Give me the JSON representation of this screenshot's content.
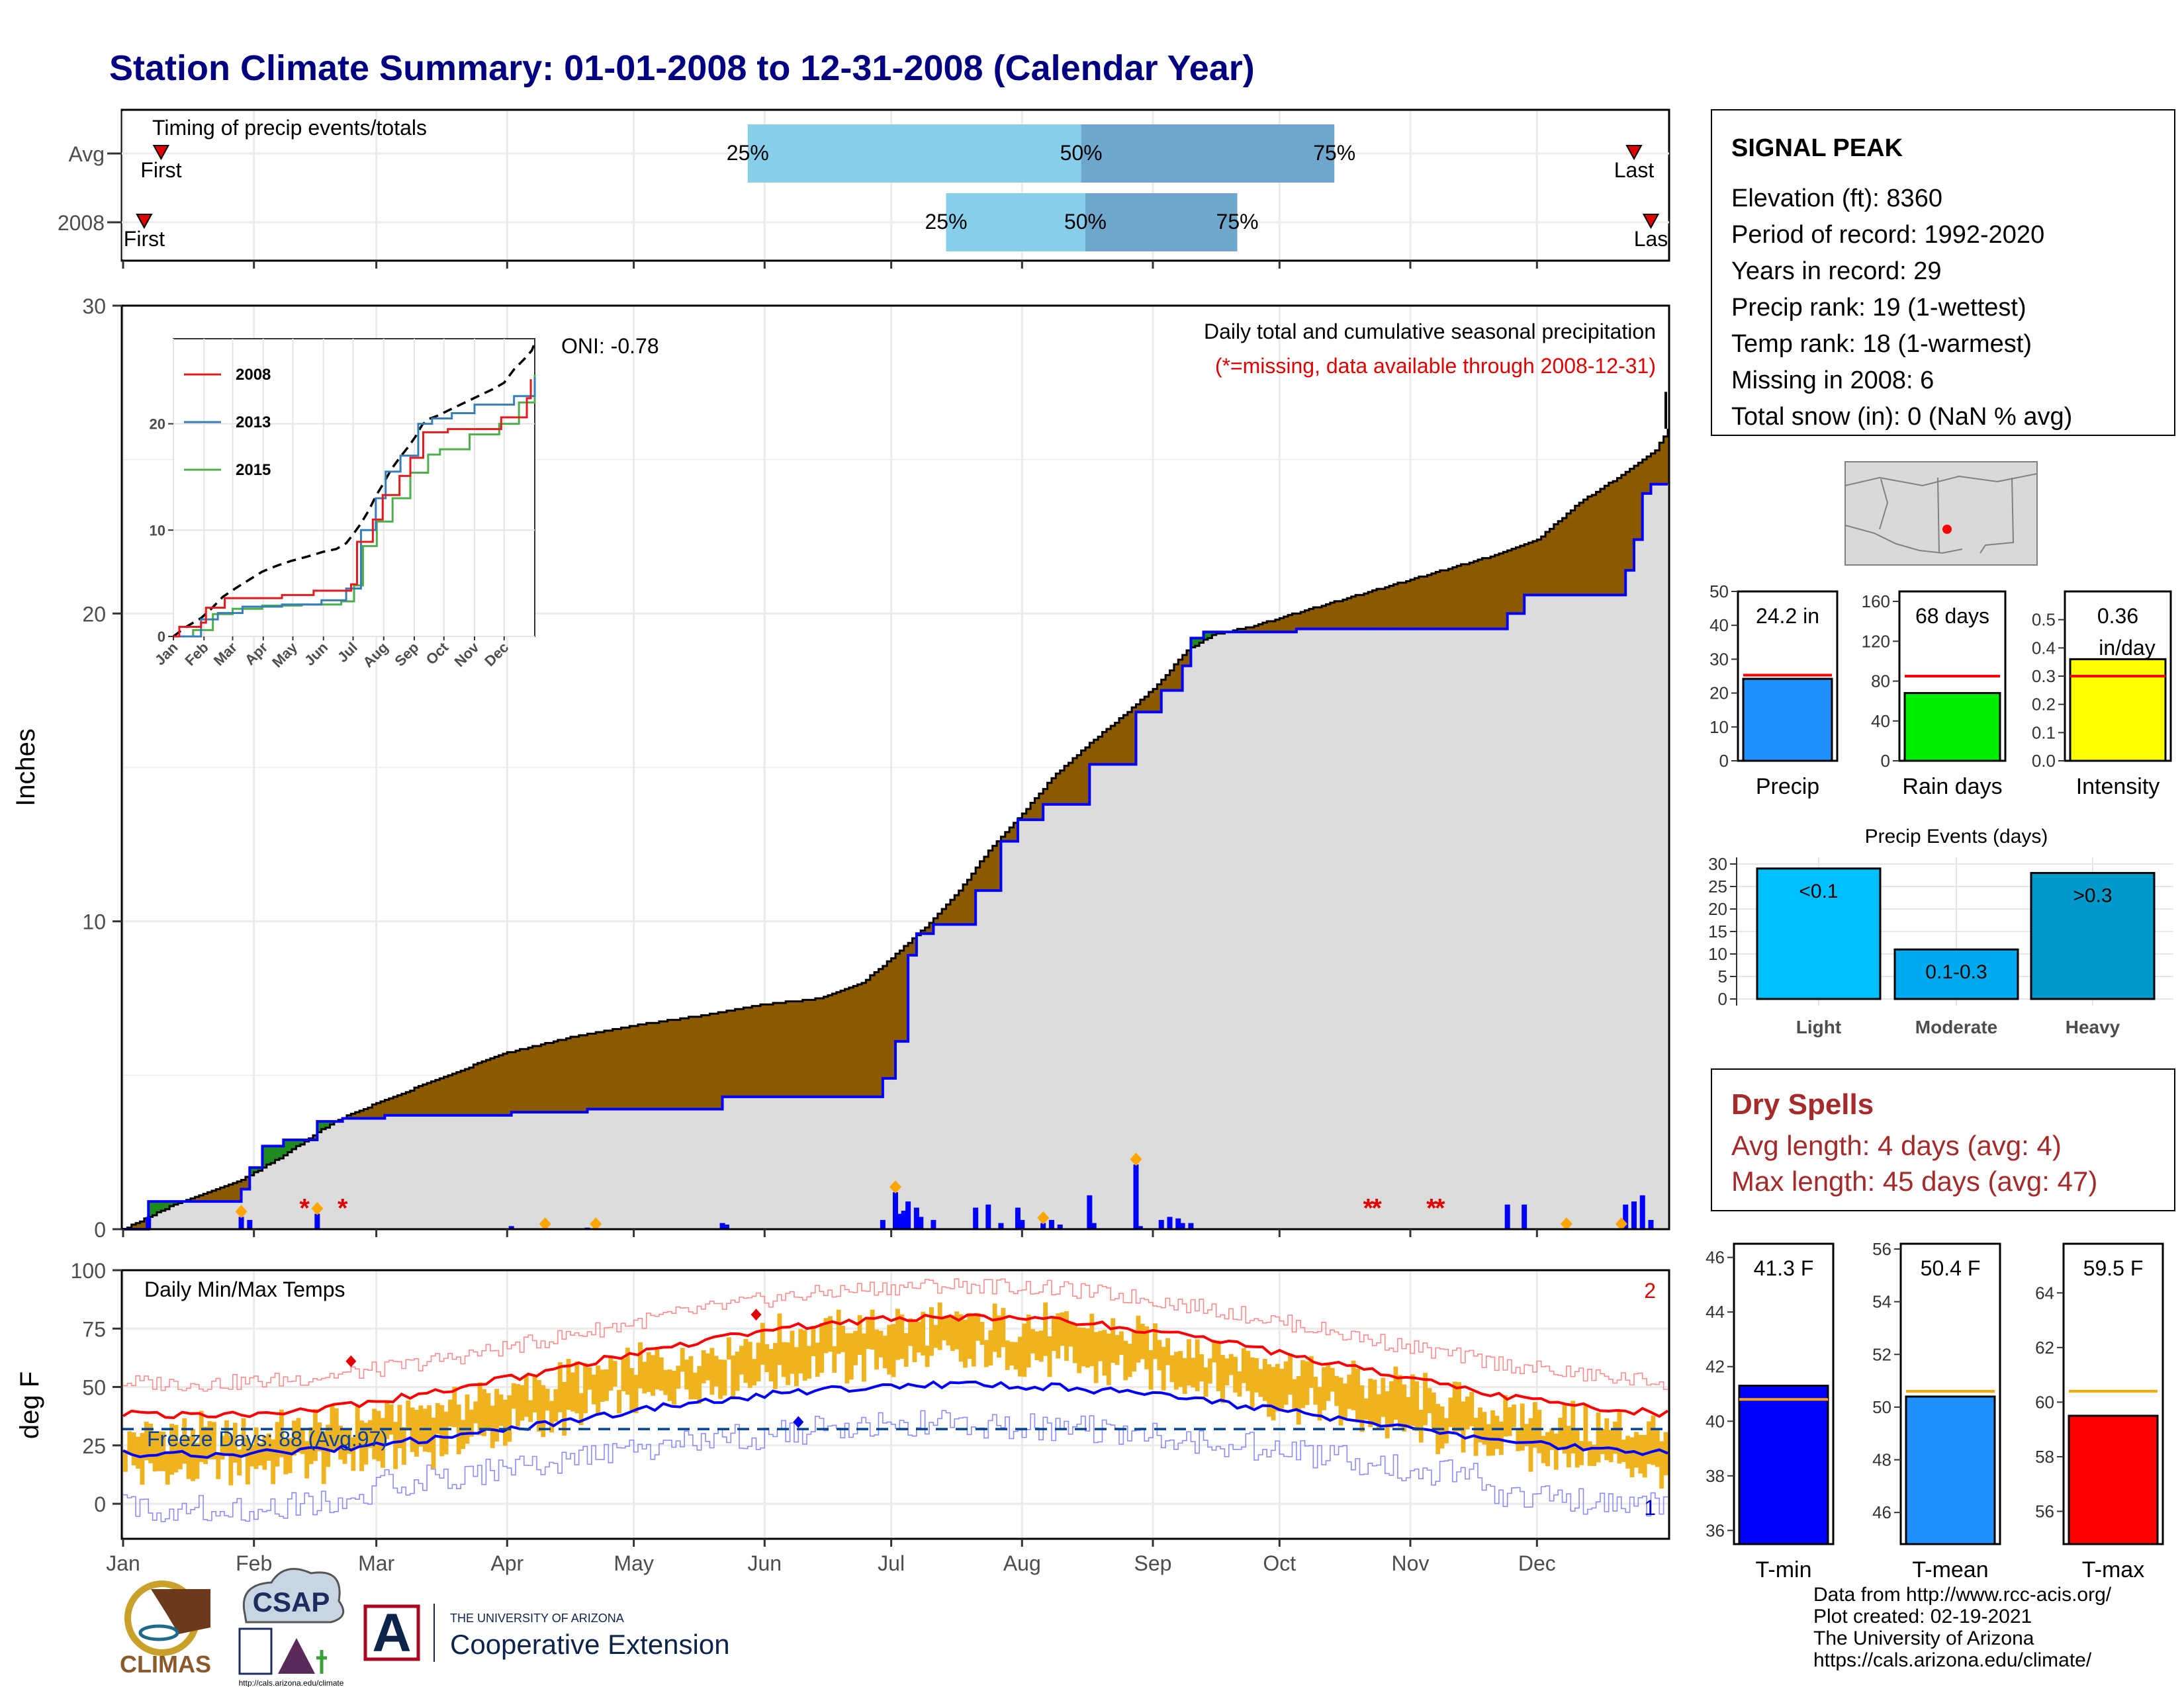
{
  "title": "Station Climate Summary: 01-01-2008 to 12-31-2008 (Calendar Year)",
  "months": [
    "Jan",
    "Feb",
    "Mar",
    "Apr",
    "May",
    "Jun",
    "Jul",
    "Aug",
    "Sep",
    "Oct",
    "Nov",
    "Dec"
  ],
  "colors": {
    "title": "#000080",
    "light_bar": "#87ceeb",
    "dark_bar": "#6fa6cc",
    "brown": "#8b5a00",
    "green": "#1f8b1f",
    "gray_fill": "#dcdcdc",
    "blue_line": "#0000ff",
    "orange": "#ffa500",
    "red": "#ff0000",
    "temp_bar": "#efb31f",
    "dry_spells": "#a52a2a"
  },
  "timing": {
    "label": "Timing of precip events/totals",
    "rows": [
      {
        "name": "Avg",
        "first_doy": 9,
        "last_doy": 358,
        "p25_doy": 148,
        "p50_doy": 227,
        "p75_doy": 287,
        "first_label": "First",
        "last_label": "Last"
      },
      {
        "name": "2008",
        "first_doy": 5,
        "last_doy": 362,
        "p25_doy": 195,
        "p50_doy": 228,
        "p75_doy": 264,
        "first_label": "First",
        "last_label": "Las"
      }
    ],
    "pct_labels": [
      "25%",
      "50%",
      "75%"
    ]
  },
  "precip": {
    "ylabel": "Inches",
    "yticks": [
      0,
      10,
      20,
      30
    ],
    "ylim": [
      0,
      30
    ],
    "annotation": "Daily total and cumulative seasonal precipitation",
    "missing_note": "(*=missing, data available through 2008-12-31)",
    "oni": "ONI: -0.78",
    "avg_cumulative": [
      [
        0,
        0
      ],
      [
        12,
        0.8
      ],
      [
        28,
        1.6
      ],
      [
        38,
        2.4
      ],
      [
        50,
        3.5
      ],
      [
        62,
        4.2
      ],
      [
        75,
        4.9
      ],
      [
        90,
        5.7
      ],
      [
        105,
        6.2
      ],
      [
        120,
        6.6
      ],
      [
        135,
        6.9
      ],
      [
        152,
        7.3
      ],
      [
        165,
        7.5
      ],
      [
        175,
        8.0
      ],
      [
        182,
        8.8
      ],
      [
        190,
        9.8
      ],
      [
        198,
        11.0
      ],
      [
        205,
        12.3
      ],
      [
        213,
        13.5
      ],
      [
        221,
        14.8
      ],
      [
        230,
        15.9
      ],
      [
        238,
        16.8
      ],
      [
        245,
        17.7
      ],
      [
        252,
        18.8
      ],
      [
        258,
        19.3
      ],
      [
        268,
        19.6
      ],
      [
        280,
        20.1
      ],
      [
        295,
        20.7
      ],
      [
        310,
        21.3
      ],
      [
        325,
        21.9
      ],
      [
        335,
        22.4
      ],
      [
        345,
        23.6
      ],
      [
        355,
        24.5
      ],
      [
        363,
        25.3
      ],
      [
        366,
        26.0
      ]
    ],
    "obs_cumulative": [
      [
        0,
        0
      ],
      [
        6,
        0
      ],
      [
        6,
        0.9
      ],
      [
        28,
        0.9
      ],
      [
        28,
        1.3
      ],
      [
        30,
        1.3
      ],
      [
        30,
        2.0
      ],
      [
        33,
        2.0
      ],
      [
        33,
        2.7
      ],
      [
        38,
        2.7
      ],
      [
        38,
        2.9
      ],
      [
        46,
        2.9
      ],
      [
        46,
        3.5
      ],
      [
        52,
        3.5
      ],
      [
        52,
        3.6
      ],
      [
        62,
        3.6
      ],
      [
        62,
        3.7
      ],
      [
        92,
        3.7
      ],
      [
        92,
        3.8
      ],
      [
        110,
        3.8
      ],
      [
        110,
        3.9
      ],
      [
        142,
        3.9
      ],
      [
        142,
        4.3
      ],
      [
        180,
        4.3
      ],
      [
        180,
        4.9
      ],
      [
        183,
        4.9
      ],
      [
        183,
        6.1
      ],
      [
        186,
        6.1
      ],
      [
        186,
        8.9
      ],
      [
        188,
        8.9
      ],
      [
        188,
        9.6
      ],
      [
        192,
        9.6
      ],
      [
        192,
        9.9
      ],
      [
        202,
        9.9
      ],
      [
        202,
        11.0
      ],
      [
        208,
        11.0
      ],
      [
        208,
        12.6
      ],
      [
        212,
        12.6
      ],
      [
        212,
        13.3
      ],
      [
        218,
        13.3
      ],
      [
        218,
        13.8
      ],
      [
        229,
        13.8
      ],
      [
        229,
        15.1
      ],
      [
        240,
        15.1
      ],
      [
        240,
        16.8
      ],
      [
        246,
        16.8
      ],
      [
        246,
        17.5
      ],
      [
        251,
        17.5
      ],
      [
        251,
        18.3
      ],
      [
        253,
        18.3
      ],
      [
        253,
        19.2
      ],
      [
        256,
        19.2
      ],
      [
        256,
        19.4
      ],
      [
        278,
        19.4
      ],
      [
        278,
        19.5
      ],
      [
        328,
        19.5
      ],
      [
        328,
        20.0
      ],
      [
        332,
        20.0
      ],
      [
        332,
        20.6
      ],
      [
        356,
        20.6
      ],
      [
        356,
        21.4
      ],
      [
        358,
        21.4
      ],
      [
        358,
        22.4
      ],
      [
        360,
        22.4
      ],
      [
        360,
        23.9
      ],
      [
        362,
        23.9
      ],
      [
        362,
        24.2
      ],
      [
        366,
        24.2
      ]
    ],
    "daily_bars": [
      [
        6,
        0.4
      ],
      [
        28,
        0.4
      ],
      [
        30,
        0.3
      ],
      [
        46,
        0.5
      ],
      [
        92,
        0.1
      ],
      [
        110,
        0.05
      ],
      [
        142,
        0.2
      ],
      [
        143,
        0.15
      ],
      [
        180,
        0.3
      ],
      [
        183,
        1.2
      ],
      [
        184,
        0.5
      ],
      [
        185,
        0.6
      ],
      [
        186,
        0.9
      ],
      [
        188,
        0.7
      ],
      [
        189,
        0.4
      ],
      [
        192,
        0.3
      ],
      [
        202,
        0.7
      ],
      [
        205,
        0.8
      ],
      [
        208,
        0.2
      ],
      [
        212,
        0.7
      ],
      [
        213,
        0.3
      ],
      [
        218,
        0.2
      ],
      [
        220,
        0.3
      ],
      [
        222,
        0.15
      ],
      [
        229,
        1.1
      ],
      [
        230,
        0.2
      ],
      [
        240,
        2.1
      ],
      [
        241,
        0.1
      ],
      [
        246,
        0.3
      ],
      [
        248,
        0.4
      ],
      [
        250,
        0.35
      ],
      [
        251,
        0.2
      ],
      [
        253,
        0.2
      ],
      [
        328,
        0.8
      ],
      [
        332,
        0.8
      ],
      [
        356,
        0.8
      ],
      [
        358,
        0.9
      ],
      [
        360,
        1.1
      ],
      [
        362,
        0.3
      ]
    ],
    "event_markers_doy": [
      28,
      46,
      100,
      112,
      183,
      218,
      240,
      342,
      355
    ],
    "missing_doy": [
      43,
      52,
      295,
      297,
      310,
      312
    ]
  },
  "inset": {
    "yticks": [
      0,
      10,
      20
    ],
    "months": [
      "Jan",
      "Feb",
      "Mar",
      "Apr",
      "May",
      "Jun",
      "Jul",
      "Aug",
      "Sep",
      "Oct",
      "Nov",
      "Dec"
    ],
    "legend": [
      "2008",
      "2013",
      "2015"
    ],
    "series_colors": {
      "2008": "#e41a1c",
      "2013": "#377eb8",
      "2015": "#4daf4a"
    },
    "series": {
      "2008": [
        [
          0,
          0
        ],
        [
          6,
          0.9
        ],
        [
          28,
          1.3
        ],
        [
          33,
          2.7
        ],
        [
          52,
          3.6
        ],
        [
          110,
          3.9
        ],
        [
          142,
          4.3
        ],
        [
          180,
          4.9
        ],
        [
          186,
          8.9
        ],
        [
          202,
          11.0
        ],
        [
          212,
          13.3
        ],
        [
          229,
          15.1
        ],
        [
          240,
          16.8
        ],
        [
          253,
          19.2
        ],
        [
          278,
          19.5
        ],
        [
          332,
          20.6
        ],
        [
          358,
          22.4
        ],
        [
          362,
          24.2
        ]
      ],
      "2013": [
        [
          0,
          0
        ],
        [
          25,
          0
        ],
        [
          28,
          1.6
        ],
        [
          45,
          2.2
        ],
        [
          70,
          2.8
        ],
        [
          110,
          3.0
        ],
        [
          150,
          3.4
        ],
        [
          175,
          4.5
        ],
        [
          190,
          10.0
        ],
        [
          205,
          13.0
        ],
        [
          215,
          15.5
        ],
        [
          230,
          17.0
        ],
        [
          248,
          20.0
        ],
        [
          262,
          20.5
        ],
        [
          282,
          21.0
        ],
        [
          305,
          21.8
        ],
        [
          345,
          22.6
        ],
        [
          366,
          24.4
        ]
      ],
      "2015": [
        [
          0,
          0
        ],
        [
          20,
          0.6
        ],
        [
          40,
          2.1
        ],
        [
          60,
          2.6
        ],
        [
          90,
          2.9
        ],
        [
          130,
          3.0
        ],
        [
          170,
          3.3
        ],
        [
          183,
          4.8
        ],
        [
          192,
          8.5
        ],
        [
          206,
          10.8
        ],
        [
          222,
          13.0
        ],
        [
          240,
          15.4
        ],
        [
          258,
          17.1
        ],
        [
          270,
          17.6
        ],
        [
          300,
          19.0
        ],
        [
          330,
          20.0
        ],
        [
          350,
          22.0
        ],
        [
          366,
          24.6
        ]
      ]
    }
  },
  "temps": {
    "label": "Daily Min/Max Temps",
    "ylabel": "deg F",
    "yticks": [
      0,
      25,
      50,
      75,
      100
    ],
    "ylim": [
      -15,
      100
    ],
    "freeze_label": "Freeze Days: 88 (Avg:97)",
    "freeze_line": 32,
    "record_high_count": "2",
    "record_low_count": "1"
  },
  "station": {
    "name": "SIGNAL PEAK",
    "lines": [
      "Elevation (ft): 8360",
      "Period of record: 1992-2020",
      "Years in record: 29",
      "Precip rank: 19 (1-wettest)",
      "Temp rank: 18 (1-warmest)",
      "Missing in 2008: 6",
      "Total snow (in): 0 (NaN % avg)"
    ]
  },
  "mini_bars": [
    {
      "name": "precip",
      "xlabel": "Precip",
      "value_label": "24.2 in",
      "value": 24.2,
      "avg": 25.3,
      "ylim": [
        0,
        50
      ],
      "yticks": [
        "0",
        "10",
        "20",
        "30",
        "40",
        "50"
      ],
      "color": "#1e90ff"
    },
    {
      "name": "raindays",
      "xlabel": "Rain days",
      "value_label": "68 days",
      "value": 68,
      "avg": 85,
      "ylim": [
        0,
        170
      ],
      "yticks": [
        "0",
        "40",
        "80",
        "120",
        "160"
      ],
      "tick_values": [
        0,
        40,
        80,
        120,
        160
      ],
      "color": "#00ee00"
    },
    {
      "name": "intensity",
      "xlabel": "Intensity",
      "value_label": "0.36",
      "value_label2": "in/day",
      "value": 0.36,
      "avg": 0.3,
      "ylim": [
        0,
        0.6
      ],
      "yticks": [
        "0.0",
        "0.1",
        "0.2",
        "0.3",
        "0.4",
        "0.5"
      ],
      "tick_values": [
        0,
        0.1,
        0.2,
        0.3,
        0.4,
        0.5
      ],
      "color": "#ffff00"
    }
  ],
  "events": {
    "title": "Precip Events (days)",
    "categories": [
      "Light",
      "Moderate",
      "Heavy"
    ],
    "labels": [
      "<0.1",
      "0.1-0.3",
      ">0.3"
    ],
    "values": [
      29,
      11,
      28
    ],
    "colors": [
      "#00bfff",
      "#00aaee",
      "#0099cc"
    ],
    "yticks": [
      "0",
      "5",
      "10",
      "15",
      "20",
      "25",
      "30"
    ]
  },
  "dry_spells": {
    "title": "Dry Spells",
    "line1": "Avg length: 4 days (avg: 4)",
    "line2": "Max length: 45 days (avg: 47)"
  },
  "temp_bars": [
    {
      "name": "tmin",
      "xlabel": "T-min",
      "value_label": "41.3 F",
      "value": 41.3,
      "avg": 40.8,
      "ylim": [
        35.5,
        46.5
      ],
      "tick_values": [
        36,
        38,
        40,
        42,
        44,
        46
      ],
      "color": "#0000ff"
    },
    {
      "name": "tmean",
      "xlabel": "T-mean",
      "value_label": "50.4 F",
      "value": 50.4,
      "avg": 50.6,
      "ylim": [
        44.8,
        56.2
      ],
      "tick_values": [
        46,
        48,
        50,
        52,
        54,
        56
      ],
      "color": "#1e90ff"
    },
    {
      "name": "tmax",
      "xlabel": "T-max",
      "value_label": "59.5 F",
      "value": 59.5,
      "avg": 60.4,
      "ylim": [
        54.8,
        65.8
      ],
      "tick_values": [
        56,
        58,
        60,
        62,
        64
      ],
      "color": "#ff0000"
    }
  ],
  "footer": {
    "lines": [
      "Data from http://www.rcc-acis.org/",
      "Plot created: 02-19-2021",
      "The University of Arizona",
      "https://cals.arizona.edu/climate/"
    ]
  },
  "logos": {
    "climas": "CLIMAS",
    "csap": "CSAP",
    "csap_url": "http://cals.arizona.edu/climate",
    "ua_small": "THE UNIVERSITY OF ARIZONA",
    "coop_ext": "Cooperative Extension",
    "ua_letter": "A"
  }
}
